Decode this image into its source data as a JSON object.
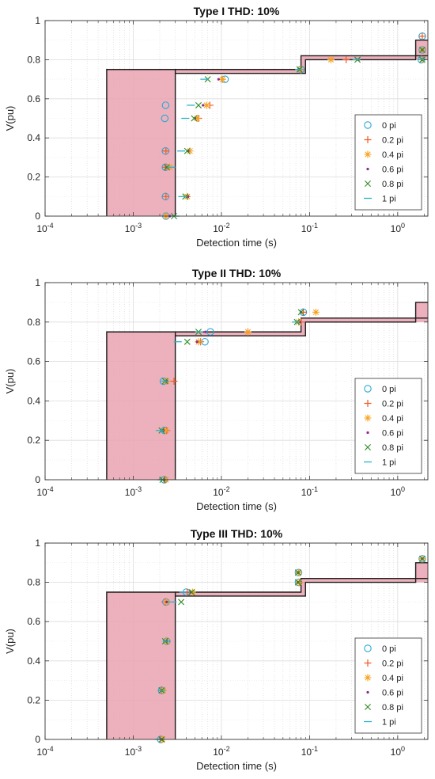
{
  "chart_data": [
    {
      "type": "scatter",
      "title": "Type I THD: 10%",
      "xlabel": "Detection time (s)",
      "ylabel": "V(pu)",
      "xscale": "log",
      "xlim": [
        0.0001,
        2.2
      ],
      "ylim": [
        0,
        1
      ],
      "xtick_labels": [
        "10^-4",
        "10^-3",
        "10^-2",
        "10^-1",
        "10^0"
      ],
      "ytick_labels": [
        "0",
        "0.2",
        "0.4",
        "0.6",
        "0.8",
        "1"
      ],
      "grid": true,
      "legend_position": "bottom-right",
      "series": [
        {
          "name": "0 pi",
          "marker": "circle",
          "color": "#2aa7d8",
          "points": [
            [
              0.00235,
              0
            ],
            [
              0.00232,
              0.1
            ],
            [
              0.00232,
              0.25
            ],
            [
              0.00232,
              0.333
            ],
            [
              0.00228,
              0.5
            ],
            [
              0.00233,
              0.567
            ],
            [
              0.011,
              0.7
            ],
            [
              0.08,
              0.75
            ],
            [
              1.85,
              0.8
            ],
            [
              1.9,
              0.85
            ],
            [
              1.9,
              0.92
            ]
          ]
        },
        {
          "name": "0.2 pi",
          "marker": "plus",
          "color": "#f15a24",
          "points": [
            [
              0.00235,
              0
            ],
            [
              0.00235,
              0.1
            ],
            [
              0.00235,
              0.25
            ],
            [
              0.00235,
              0.333
            ],
            [
              0.0055,
              0.5
            ],
            [
              0.0074,
              0.567
            ],
            [
              0.0102,
              0.7
            ],
            [
              0.079,
              0.75
            ],
            [
              0.26,
              0.8
            ],
            [
              1.9,
              0.8
            ],
            [
              1.9,
              0.85
            ],
            [
              1.9,
              0.92
            ]
          ]
        },
        {
          "name": "0.4 pi",
          "marker": "star",
          "color": "#f7a11b",
          "points": [
            [
              0.00235,
              0
            ],
            [
              0.0041,
              0.1
            ],
            [
              0.0026,
              0.25
            ],
            [
              0.0044,
              0.333
            ],
            [
              0.0053,
              0.5
            ],
            [
              0.0068,
              0.567
            ],
            [
              0.0103,
              0.7
            ],
            [
              0.078,
              0.75
            ],
            [
              0.175,
              0.8
            ],
            [
              1.9,
              0.8
            ],
            [
              1.9,
              0.85
            ]
          ]
        },
        {
          "name": "0.6 pi",
          "marker": "dot",
          "color": "#8b2b8e",
          "points": [
            [
              0.0026,
              0
            ],
            [
              0.0042,
              0.1
            ],
            [
              0.0024,
              0.25
            ],
            [
              0.0042,
              0.333
            ],
            [
              0.005,
              0.5
            ],
            [
              0.0062,
              0.567
            ],
            [
              0.0093,
              0.7
            ],
            [
              0.077,
              0.75
            ],
            [
              0.36,
              0.8
            ],
            [
              1.9,
              0.8
            ],
            [
              1.9,
              0.85
            ]
          ]
        },
        {
          "name": "0.8 pi",
          "marker": "x",
          "color": "#2e8b22",
          "points": [
            [
              0.0029,
              0
            ],
            [
              0.0039,
              0.1
            ],
            [
              0.0024,
              0.25
            ],
            [
              0.0041,
              0.333
            ],
            [
              0.0049,
              0.5
            ],
            [
              0.0055,
              0.567
            ],
            [
              0.007,
              0.7
            ],
            [
              0.077,
              0.75
            ],
            [
              0.35,
              0.8
            ],
            [
              1.9,
              0.8
            ],
            [
              1.9,
              0.85
            ]
          ]
        },
        {
          "name": "1 pi",
          "marker": "dash",
          "color": "#2bb3c8",
          "points": [
            [
              0.003,
              0
            ],
            [
              0.0036,
              0.1
            ],
            [
              0.0027,
              0.25
            ],
            [
              0.0035,
              0.333
            ],
            [
              0.0039,
              0.5
            ],
            [
              0.0045,
              0.567
            ],
            [
              0.0064,
              0.7
            ],
            [
              0.076,
              0.75
            ],
            [
              0.34,
              0.8
            ],
            [
              1.9,
              0.8
            ]
          ]
        }
      ]
    },
    {
      "type": "scatter",
      "title": "Type II THD: 10%",
      "xlabel": "Detection time (s)",
      "ylabel": "V(pu)",
      "xscale": "log",
      "xlim": [
        0.0001,
        2.2
      ],
      "ylim": [
        0,
        1
      ],
      "xtick_labels": [
        "10^-4",
        "10^-3",
        "10^-2",
        "10^-1",
        "10^0"
      ],
      "ytick_labels": [
        "0",
        "0.2",
        "0.4",
        "0.6",
        "0.8",
        "1"
      ],
      "grid": true,
      "legend_position": "bottom-right",
      "series": [
        {
          "name": "0 pi",
          "marker": "circle",
          "color": "#2aa7d8",
          "points": [
            [
              0.00225,
              0
            ],
            [
              0.00226,
              0.25
            ],
            [
              0.0022,
              0.5
            ],
            [
              0.0065,
              0.7
            ],
            [
              0.0075,
              0.75
            ],
            [
              0.085,
              0.85
            ]
          ]
        },
        {
          "name": "0.2 pi",
          "marker": "plus",
          "color": "#f15a24",
          "points": [
            [
              0.00228,
              0
            ],
            [
              0.0024,
              0.25
            ],
            [
              0.0029,
              0.5
            ],
            [
              0.0058,
              0.7
            ],
            [
              0.02,
              0.75
            ],
            [
              0.08,
              0.8
            ],
            [
              0.085,
              0.85
            ]
          ]
        },
        {
          "name": "0.4 pi",
          "marker": "star",
          "color": "#f7a11b",
          "points": [
            [
              0.00235,
              0
            ],
            [
              0.00235,
              0.25
            ],
            [
              0.0024,
              0.5
            ],
            [
              0.0055,
              0.7
            ],
            [
              0.02,
              0.75
            ],
            [
              0.075,
              0.8
            ],
            [
              0.118,
              0.85
            ]
          ]
        },
        {
          "name": "0.6 pi",
          "marker": "dot",
          "color": "#8b2b8e",
          "points": [
            [
              0.00225,
              0
            ],
            [
              0.0022,
              0.25
            ],
            [
              0.0024,
              0.5
            ],
            [
              0.0053,
              0.7
            ],
            [
              0.0066,
              0.75
            ],
            [
              0.078,
              0.8
            ],
            [
              0.08,
              0.85
            ]
          ]
        },
        {
          "name": "0.8 pi",
          "marker": "x",
          "color": "#2e8b22",
          "points": [
            [
              0.00215,
              0
            ],
            [
              0.0021,
              0.25
            ],
            [
              0.0023,
              0.5
            ],
            [
              0.0041,
              0.7
            ],
            [
              0.0055,
              0.75
            ],
            [
              0.072,
              0.8
            ],
            [
              0.08,
              0.85
            ]
          ]
        },
        {
          "name": "1 pi",
          "marker": "dash",
          "color": "#2bb3c8",
          "points": [
            [
              0.0021,
              0
            ],
            [
              0.002,
              0.25
            ],
            [
              0.0023,
              0.5
            ],
            [
              0.0032,
              0.7
            ],
            [
              0.0056,
              0.75
            ],
            [
              0.07,
              0.8
            ]
          ]
        }
      ]
    },
    {
      "type": "scatter",
      "title": "Type III THD: 10%",
      "xlabel": "Detection time (s)",
      "ylabel": "V(pu)",
      "xscale": "log",
      "xlim": [
        0.0001,
        2.2
      ],
      "ylim": [
        0,
        1
      ],
      "xtick_labels": [
        "10^-4",
        "10^-3",
        "10^-2",
        "10^-1",
        "10^0"
      ],
      "ytick_labels": [
        "0",
        "0.2",
        "0.4",
        "0.6",
        "0.8",
        "1"
      ],
      "grid": true,
      "legend_position": "bottom-right",
      "series": [
        {
          "name": "0 pi",
          "marker": "circle",
          "color": "#2aa7d8",
          "points": [
            [
              0.00205,
              0
            ],
            [
              0.0021,
              0.25
            ],
            [
              0.0024,
              0.5
            ],
            [
              0.00235,
              0.7
            ],
            [
              0.004,
              0.75
            ],
            [
              0.075,
              0.8
            ],
            [
              0.075,
              0.85
            ],
            [
              1.9,
              0.92
            ]
          ]
        },
        {
          "name": "0.2 pi",
          "marker": "plus",
          "color": "#f15a24",
          "points": [
            [
              0.00205,
              0
            ],
            [
              0.0021,
              0.25
            ],
            [
              0.0024,
              0.5
            ],
            [
              0.0023,
              0.7
            ],
            [
              0.0041,
              0.75
            ],
            [
              0.077,
              0.8
            ],
            [
              0.075,
              0.85
            ],
            [
              1.9,
              0.92
            ]
          ]
        },
        {
          "name": "0.4 pi",
          "marker": "star",
          "color": "#f7a11b",
          "points": [
            [
              0.00215,
              0
            ],
            [
              0.0022,
              0.25
            ],
            [
              0.0024,
              0.5
            ],
            [
              0.0024,
              0.7
            ],
            [
              0.0047,
              0.75
            ],
            [
              0.076,
              0.8
            ],
            [
              0.075,
              0.85
            ],
            [
              1.9,
              0.92
            ]
          ]
        },
        {
          "name": "0.6 pi",
          "marker": "dot",
          "color": "#8b2b8e",
          "points": [
            [
              0.0021,
              0
            ],
            [
              0.0021,
              0.25
            ],
            [
              0.0024,
              0.5
            ],
            [
              0.0024,
              0.7
            ],
            [
              0.0045,
              0.75
            ],
            [
              0.074,
              0.8
            ],
            [
              0.074,
              0.85
            ],
            [
              1.9,
              0.92
            ]
          ]
        },
        {
          "name": "0.8 pi",
          "marker": "x",
          "color": "#2e8b22",
          "points": [
            [
              0.0021,
              0
            ],
            [
              0.0021,
              0.25
            ],
            [
              0.0023,
              0.5
            ],
            [
              0.0035,
              0.7
            ],
            [
              0.0046,
              0.75
            ],
            [
              0.074,
              0.8
            ],
            [
              0.074,
              0.85
            ],
            [
              1.9,
              0.92
            ]
          ]
        },
        {
          "name": "1 pi",
          "marker": "dash",
          "color": "#2bb3c8",
          "points": [
            [
              0.00195,
              0
            ],
            [
              0.0021,
              0.25
            ],
            [
              0.0024,
              0.5
            ],
            [
              0.0028,
              0.7
            ],
            [
              0.0037,
              0.75
            ]
          ]
        }
      ]
    }
  ]
}
